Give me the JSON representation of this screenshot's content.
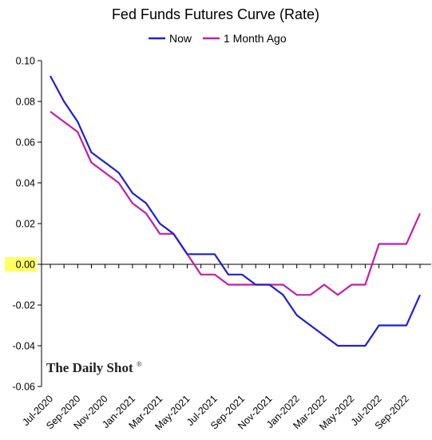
{
  "chart_data": {
    "type": "line",
    "title": "Fed Funds Futures Curve (Rate)",
    "xlabel": "",
    "ylabel": "",
    "ylim": [
      -0.06,
      0.1
    ],
    "yticks": [
      0.1,
      0.08,
      0.06,
      0.04,
      0.02,
      0.0,
      -0.02,
      -0.04,
      -0.06
    ],
    "ytick_labels": [
      "0.10",
      "0.08",
      "0.06",
      "0.04",
      "0.02",
      "0.00",
      "-0.02",
      "-0.04",
      "-0.06"
    ],
    "highlighted_tick": "0.00",
    "highlight_color": "#ffff66",
    "x": [
      "Jul-2020",
      "Aug-2020",
      "Sep-2020",
      "Oct-2020",
      "Nov-2020",
      "Dec-2020",
      "Jan-2021",
      "Feb-2021",
      "Mar-2021",
      "Apr-2021",
      "May-2021",
      "Jun-2021",
      "Jul-2021",
      "Aug-2021",
      "Sep-2021",
      "Oct-2021",
      "Nov-2021",
      "Dec-2021",
      "Jan-2022",
      "Feb-2022",
      "Mar-2022",
      "Apr-2022",
      "May-2022",
      "Jun-2022",
      "Jul-2022",
      "Aug-2022",
      "Sep-2022",
      "Oct-2022"
    ],
    "x_tick_labels": [
      "Jul-2020",
      "Sep-2020",
      "Nov-2020",
      "Jan-2021",
      "Mar-2021",
      "May-2021",
      "Jul-2021",
      "Sep-2021",
      "Nov-2021",
      "Jan-2022",
      "Mar-2022",
      "May-2022",
      "Jul-2022",
      "Sep-2022"
    ],
    "series": [
      {
        "name": "Now",
        "color": "#1f1fd6",
        "values": [
          0.0925,
          0.08,
          0.07,
          0.055,
          0.05,
          0.045,
          0.035,
          0.03,
          0.02,
          0.015,
          0.005,
          0.005,
          0.005,
          -0.005,
          -0.005,
          -0.01,
          -0.01,
          -0.015,
          -0.025,
          -0.03,
          -0.035,
          -0.04,
          -0.04,
          -0.04,
          -0.03,
          -0.03,
          -0.03,
          -0.015
        ]
      },
      {
        "name": "1 Month Ago",
        "color": "#c21ea8",
        "values": [
          0.075,
          0.07,
          0.065,
          0.05,
          0.045,
          0.04,
          0.03,
          0.025,
          0.015,
          0.015,
          0.005,
          -0.005,
          -0.005,
          -0.01,
          -0.01,
          -0.01,
          -0.01,
          -0.01,
          -0.015,
          -0.015,
          -0.01,
          -0.015,
          -0.01,
          -0.01,
          0.01,
          0.01,
          0.01,
          0.025
        ]
      }
    ],
    "legend_position": "top-center",
    "grid": false
  },
  "watermark": {
    "text": "The Daily Shot",
    "mark": "®"
  }
}
